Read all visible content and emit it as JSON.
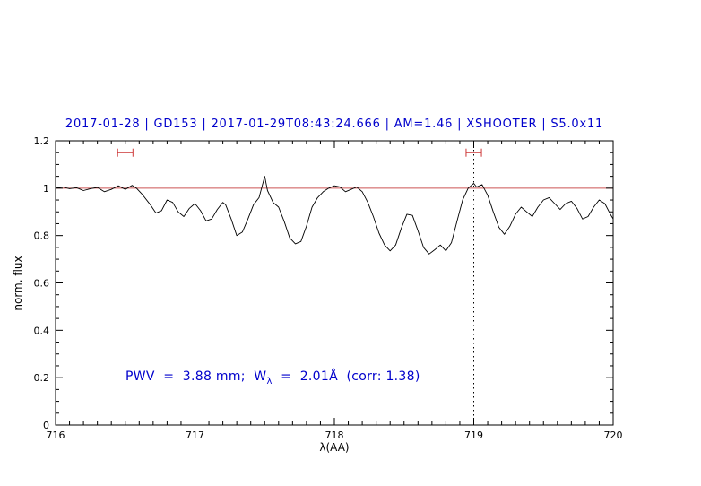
{
  "title": "2017-01-28 | GD153 | 2017-01-29T08:43:24.666 | AM=1.46 | XSHOOTER | S5.0x11",
  "annotation": {
    "prefix": "PWV  =  3.88 mm;  W",
    "sub": "λ",
    "suffix": "  =  2.01Å  (corr: 1.38)"
  },
  "colors": {
    "title_text": "#0000cc",
    "annotation_text": "#0000cc",
    "continuum_line": "#cc5555",
    "range_marker": "#cc3333",
    "spectrum": "#000000",
    "dotted_guide": "#000000"
  },
  "chart_data": {
    "type": "line",
    "title": "2017-01-28 | GD153 | 2017-01-29T08:43:24.666 | AM=1.46 | XSHOOTER | S5.0x11",
    "xlabel": "λ(AA)",
    "ylabel": "norm. flux",
    "xlim": [
      716,
      720
    ],
    "ylim": [
      0,
      1.2
    ],
    "grid": false,
    "x_ticks": {
      "values": [
        716,
        717,
        718,
        719,
        720
      ],
      "labels": [
        "716",
        "717",
        "718",
        "719",
        "720"
      ]
    },
    "y_ticks": {
      "values": [
        0,
        0.2,
        0.4,
        0.6,
        0.8,
        1.0,
        1.2
      ],
      "labels": [
        "0",
        "0.2",
        "0.4",
        "0.6",
        "0.8",
        "1",
        "1.2"
      ]
    },
    "vlines": [
      {
        "x": 717,
        "style": "dotted",
        "color": "#000000"
      },
      {
        "x": 719,
        "style": "dotted",
        "color": "#000000"
      }
    ],
    "hlines": [
      {
        "y": 1.0,
        "color": "#cc5555"
      }
    ],
    "range_markers": [
      {
        "x": 716.5,
        "y": 1.15,
        "half_width": 0.055,
        "color": "#cc3333"
      },
      {
        "x": 719.0,
        "y": 1.15,
        "half_width": 0.055,
        "color": "#cc3333"
      }
    ],
    "annotation": {
      "x": 716.5,
      "y": 0.2,
      "text": "PWV = 3.88 mm; Wλ = 2.01Å (corr: 1.38)"
    },
    "series": [
      {
        "name": "normalized spectrum",
        "color": "#000000",
        "points": [
          [
            716.0,
            1.0
          ],
          [
            716.05,
            1.005
          ],
          [
            716.1,
            0.998
          ],
          [
            716.15,
            1.002
          ],
          [
            716.2,
            0.99
          ],
          [
            716.25,
            0.998
          ],
          [
            716.3,
            1.003
          ],
          [
            716.35,
            0.985
          ],
          [
            716.4,
            0.995
          ],
          [
            716.45,
            1.01
          ],
          [
            716.5,
            0.995
          ],
          [
            716.55,
            1.012
          ],
          [
            716.58,
            1.0
          ],
          [
            716.62,
            0.975
          ],
          [
            716.68,
            0.93
          ],
          [
            716.72,
            0.895
          ],
          [
            716.76,
            0.905
          ],
          [
            716.8,
            0.95
          ],
          [
            716.84,
            0.94
          ],
          [
            716.88,
            0.9
          ],
          [
            716.92,
            0.88
          ],
          [
            716.96,
            0.915
          ],
          [
            717.0,
            0.935
          ],
          [
            717.04,
            0.905
          ],
          [
            717.08,
            0.862
          ],
          [
            717.12,
            0.87
          ],
          [
            717.16,
            0.91
          ],
          [
            717.2,
            0.94
          ],
          [
            717.22,
            0.93
          ],
          [
            717.26,
            0.87
          ],
          [
            717.3,
            0.8
          ],
          [
            717.34,
            0.815
          ],
          [
            717.38,
            0.87
          ],
          [
            717.42,
            0.93
          ],
          [
            717.46,
            0.96
          ],
          [
            717.5,
            1.05
          ],
          [
            717.52,
            0.99
          ],
          [
            717.56,
            0.94
          ],
          [
            717.6,
            0.92
          ],
          [
            717.64,
            0.86
          ],
          [
            717.68,
            0.79
          ],
          [
            717.72,
            0.765
          ],
          [
            717.76,
            0.775
          ],
          [
            717.8,
            0.84
          ],
          [
            717.84,
            0.92
          ],
          [
            717.88,
            0.96
          ],
          [
            717.92,
            0.985
          ],
          [
            717.96,
            1.0
          ],
          [
            718.0,
            1.01
          ],
          [
            718.04,
            1.005
          ],
          [
            718.08,
            0.985
          ],
          [
            718.12,
            0.995
          ],
          [
            718.16,
            1.005
          ],
          [
            718.2,
            0.985
          ],
          [
            718.24,
            0.94
          ],
          [
            718.28,
            0.88
          ],
          [
            718.32,
            0.81
          ],
          [
            718.36,
            0.76
          ],
          [
            718.4,
            0.735
          ],
          [
            718.44,
            0.76
          ],
          [
            718.48,
            0.83
          ],
          [
            718.52,
            0.89
          ],
          [
            718.56,
            0.885
          ],
          [
            718.6,
            0.82
          ],
          [
            718.64,
            0.75
          ],
          [
            718.68,
            0.722
          ],
          [
            718.72,
            0.74
          ],
          [
            718.76,
            0.76
          ],
          [
            718.8,
            0.735
          ],
          [
            718.84,
            0.77
          ],
          [
            718.88,
            0.86
          ],
          [
            718.92,
            0.95
          ],
          [
            718.96,
            1.0
          ],
          [
            719.0,
            1.02
          ],
          [
            719.02,
            1.005
          ],
          [
            719.06,
            1.015
          ],
          [
            719.1,
            0.97
          ],
          [
            719.14,
            0.9
          ],
          [
            719.18,
            0.835
          ],
          [
            719.22,
            0.805
          ],
          [
            719.26,
            0.84
          ],
          [
            719.3,
            0.89
          ],
          [
            719.34,
            0.92
          ],
          [
            719.38,
            0.9
          ],
          [
            719.42,
            0.88
          ],
          [
            719.46,
            0.92
          ],
          [
            719.5,
            0.95
          ],
          [
            719.54,
            0.96
          ],
          [
            719.58,
            0.935
          ],
          [
            719.62,
            0.91
          ],
          [
            719.66,
            0.935
          ],
          [
            719.7,
            0.945
          ],
          [
            719.74,
            0.915
          ],
          [
            719.78,
            0.87
          ],
          [
            719.82,
            0.88
          ],
          [
            719.86,
            0.92
          ],
          [
            719.9,
            0.95
          ],
          [
            719.94,
            0.935
          ],
          [
            719.98,
            0.89
          ],
          [
            720.0,
            0.87
          ]
        ]
      }
    ]
  }
}
